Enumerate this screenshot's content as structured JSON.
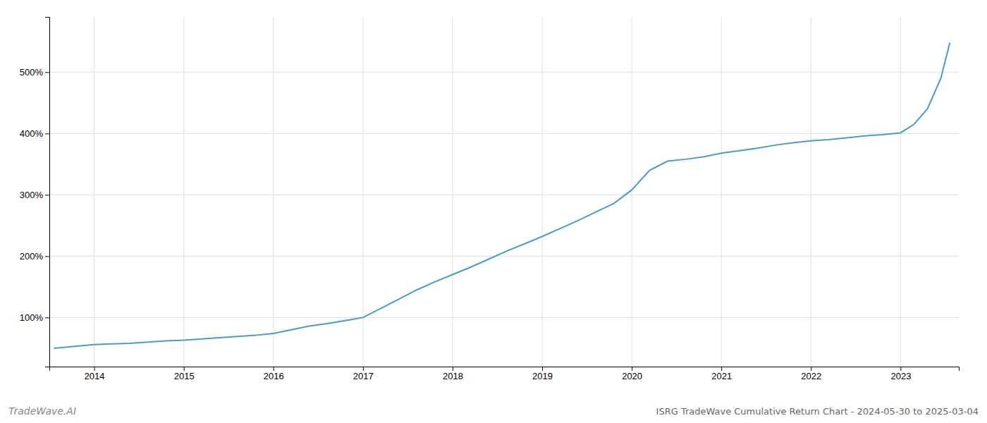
{
  "chart_data": {
    "type": "line",
    "title": "ISRG TradeWave Cumulative Return Chart - 2024-05-30 to 2025-03-04",
    "annotations": [
      "TradeWave.AI"
    ],
    "color": "#4a9cc7",
    "grid": true,
    "x": [
      2013.55,
      2013.7,
      2013.85,
      2014.0,
      2014.2,
      2014.4,
      2014.6,
      2014.8,
      2015.0,
      2015.2,
      2015.4,
      2015.6,
      2015.8,
      2016.0,
      2016.2,
      2016.4,
      2016.6,
      2016.8,
      2017.0,
      2017.2,
      2017.4,
      2017.6,
      2017.8,
      2018.0,
      2018.2,
      2018.4,
      2018.6,
      2018.8,
      2019.0,
      2019.2,
      2019.4,
      2019.6,
      2019.8,
      2020.0,
      2020.2,
      2020.4,
      2020.6,
      2020.8,
      2021.0,
      2021.2,
      2021.4,
      2021.6,
      2021.8,
      2022.0,
      2022.2,
      2022.4,
      2022.6,
      2022.8,
      2023.0,
      2023.15,
      2023.3,
      2023.45,
      2023.55
    ],
    "values": [
      50,
      52,
      54,
      56,
      57,
      58,
      60,
      62,
      63,
      65,
      67,
      69,
      71,
      74,
      80,
      86,
      90,
      95,
      100,
      115,
      130,
      145,
      158,
      170,
      182,
      195,
      208,
      220,
      232,
      245,
      258,
      272,
      286,
      308,
      340,
      355,
      358,
      362,
      368,
      372,
      376,
      381,
      385,
      388,
      390,
      393,
      396,
      398,
      401,
      415,
      440,
      490,
      548
    ],
    "xlim": [
      2013.5,
      2023.65
    ],
    "xticks": [
      2014,
      2015,
      2016,
      2017,
      2018,
      2019,
      2020,
      2021,
      2022,
      2023
    ],
    "ylim": [
      20,
      590
    ],
    "yticks": [
      {
        "value": 100,
        "label": "100%"
      },
      {
        "value": 200,
        "label": "200%"
      },
      {
        "value": 300,
        "label": "300%"
      },
      {
        "value": 400,
        "label": "400%"
      },
      {
        "value": 500,
        "label": "500%"
      }
    ]
  }
}
